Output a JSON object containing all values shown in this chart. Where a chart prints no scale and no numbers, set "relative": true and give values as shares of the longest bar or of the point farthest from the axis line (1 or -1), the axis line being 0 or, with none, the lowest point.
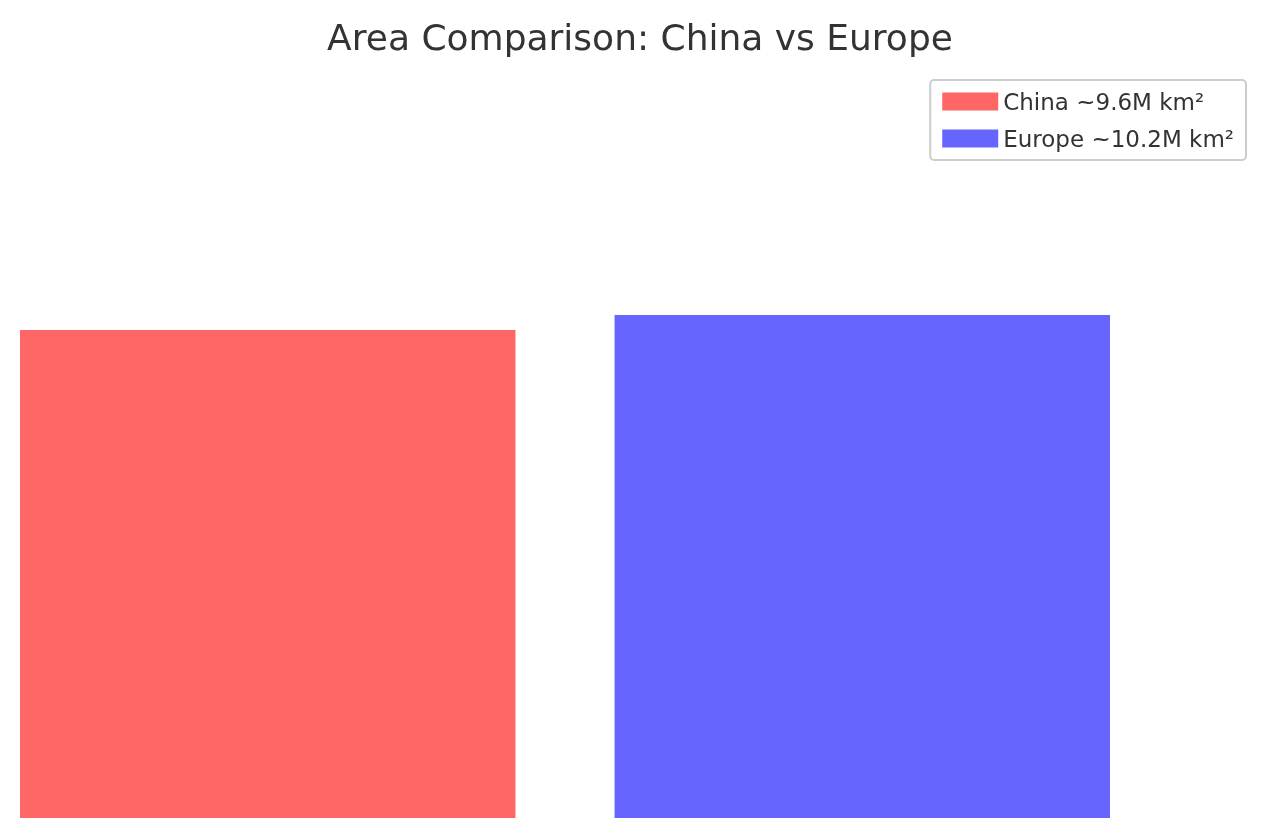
{
  "chart_data": {
    "type": "bar",
    "title": "Area Comparison: China vs Europe",
    "categories": [
      null
    ],
    "relative": true,
    "legend": "top right",
    "series": [
      {
        "name": "China ~9.6M km²",
        "color": "#ff6666",
        "values": [
          0.97
        ]
      },
      {
        "name": "Europe ~10.2M km²",
        "color": "#6666ff",
        "values": [
          1
        ]
      }
    ]
  }
}
